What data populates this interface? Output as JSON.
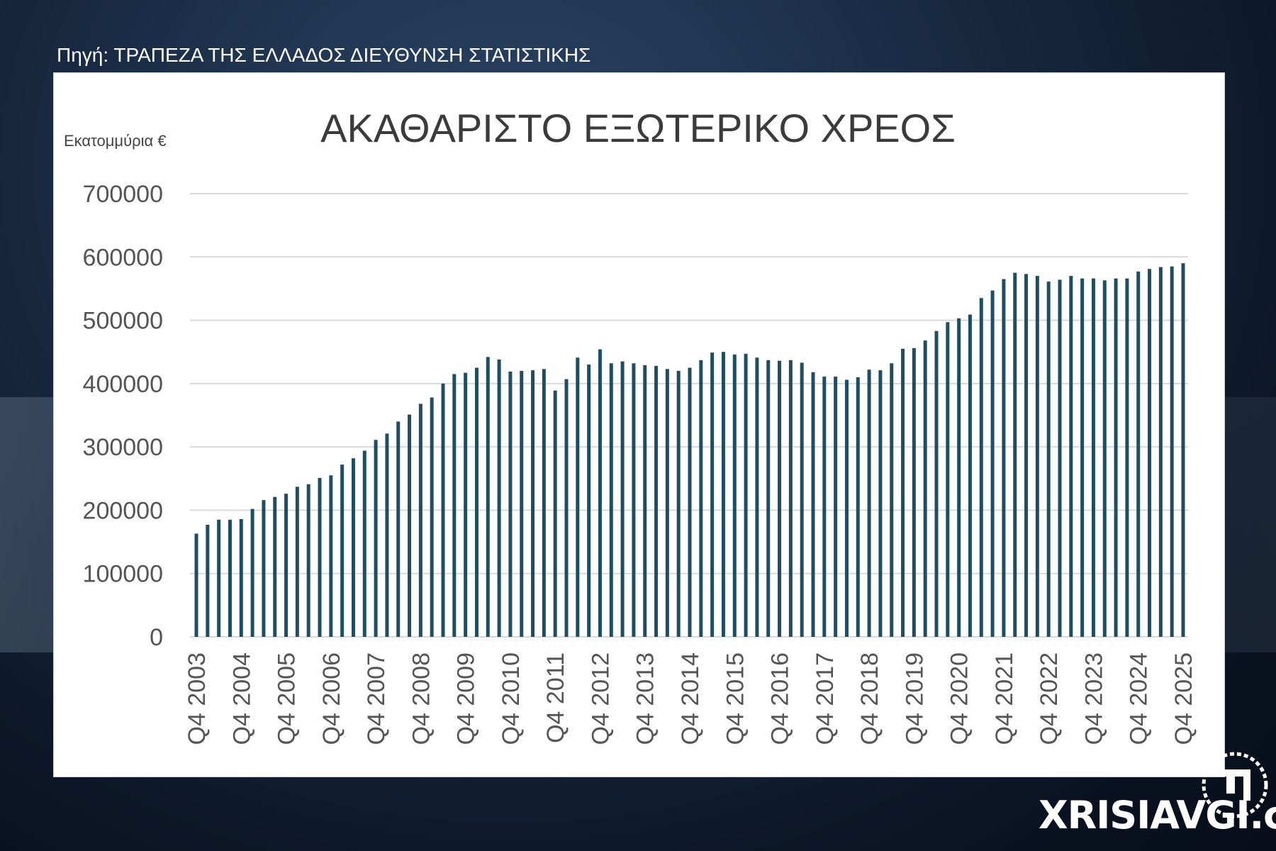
{
  "source": "Πηγή: ΤΡΑΠΕΖΑ ΤΗΣ ΕΛΛΑΔΟΣ ΔΙΕΥΘΥΝΣΗ ΣΤΑΤΙΣΤΙΚΗΣ",
  "watermark": "XRISIAVGI.com",
  "chart_data": {
    "type": "bar",
    "title": "ΑΚΑΘΑΡΙΣΤΟ ΕΞΩΤΕΡΙΚΟ ΧΡΕΟΣ",
    "ylabel": "Εκατομμύρια €",
    "xlabel": "",
    "ylim": [
      0,
      700000
    ],
    "yticks": [
      0,
      100000,
      200000,
      300000,
      400000,
      500000,
      600000,
      700000
    ],
    "grid": true,
    "bar_color": "#1f4e63",
    "tick_labels": [
      "Q4 2003",
      "Q4 2004",
      "Q4 2005",
      "Q4 2006",
      "Q4 2007",
      "Q4 2008",
      "Q4 2009",
      "Q4 2010",
      "Q4 2011",
      "Q4 2012",
      "Q4 2013",
      "Q4 2014",
      "Q4 2015",
      "Q4 2016",
      "Q4 2017",
      "Q4 2018",
      "Q4 2019",
      "Q4 2020",
      "Q4 2021",
      "Q4 2022",
      "Q4 2023",
      "Q4 2024",
      "Q4 2025"
    ],
    "values": [
      163000,
      177000,
      185000,
      185000,
      186000,
      202000,
      216000,
      221000,
      226000,
      237000,
      241000,
      251000,
      255000,
      272000,
      282000,
      294000,
      311000,
      321000,
      340000,
      351000,
      368000,
      378000,
      400000,
      415000,
      417000,
      425000,
      442000,
      438000,
      419000,
      420000,
      421000,
      423000,
      389000,
      407000,
      441000,
      430000,
      454000,
      432000,
      435000,
      432000,
      429000,
      428000,
      423000,
      420000,
      425000,
      437000,
      449000,
      450000,
      446000,
      447000,
      441000,
      437000,
      436000,
      437000,
      433000,
      418000,
      411000,
      411000,
      406000,
      410000,
      422000,
      421000,
      432000,
      455000,
      456000,
      468000,
      483000,
      497000,
      503000,
      509000,
      535000,
      547000,
      565000,
      575000,
      573000,
      570000,
      561000,
      564000,
      570000,
      566000,
      566000,
      563000,
      566000,
      566000,
      577000,
      581000,
      584000,
      585000,
      590000
    ]
  }
}
